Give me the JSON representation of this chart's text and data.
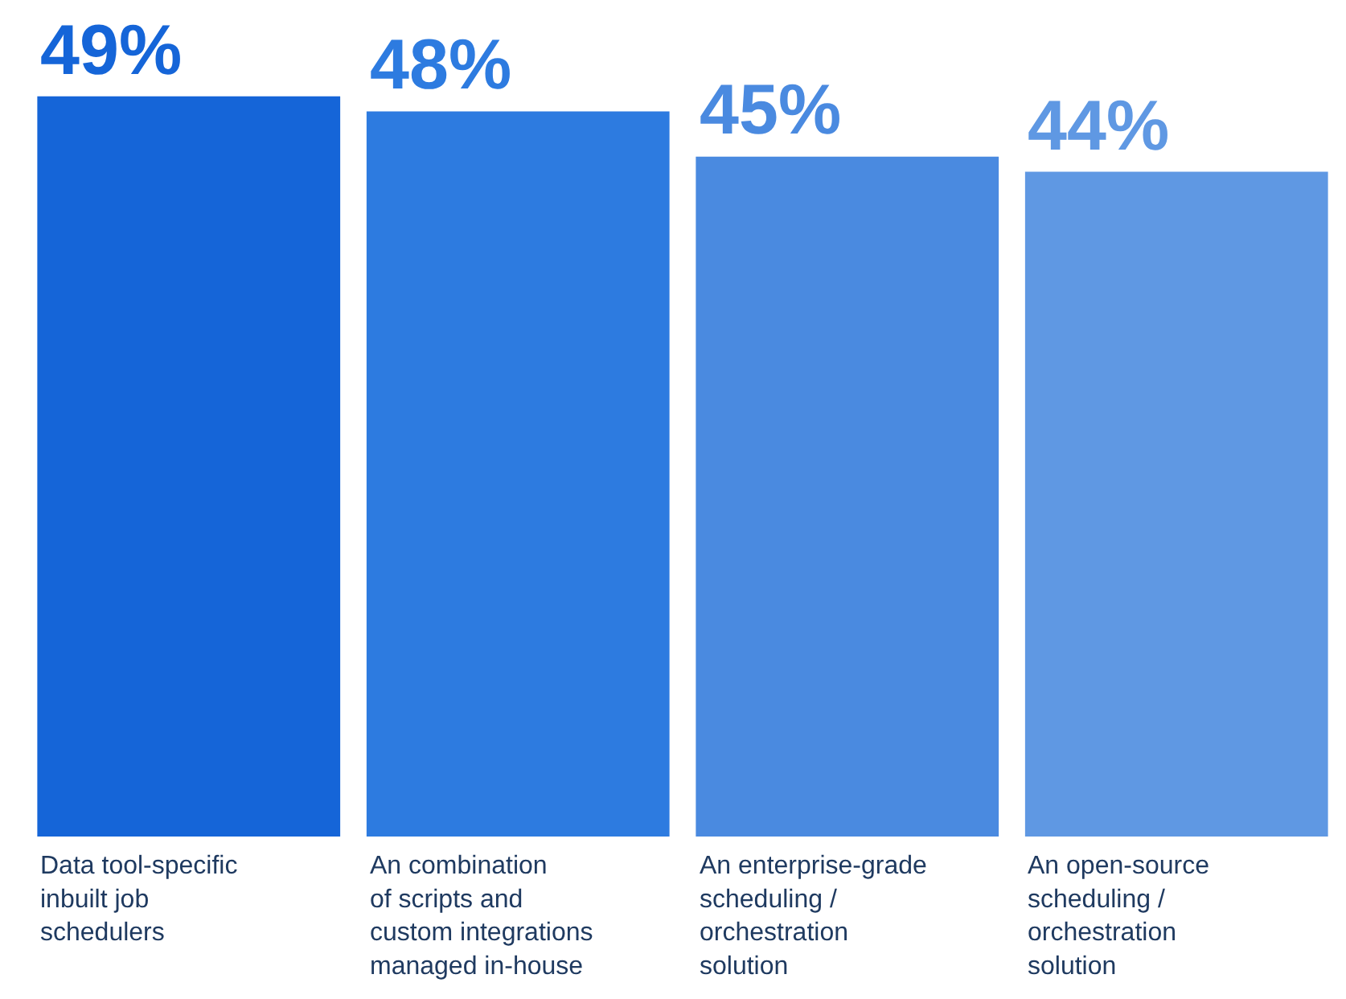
{
  "chart_data": {
    "type": "bar",
    "categories": [
      "Data tool-specific\ninbuilt job\nschedulers",
      "An combination\nof scripts and\ncustom integrations\nmanaged in-house",
      "An enterprise-grade\nscheduling /\norchestration\nsolution",
      "An open-source\nscheduling /\norchestration\nsolution"
    ],
    "values": [
      49,
      48,
      45,
      44
    ],
    "colors": [
      "#1565d8",
      "#2d7be0",
      "#4a8ae0",
      "#5f98e3"
    ],
    "value_labels": [
      "49%",
      "48%",
      "45%",
      "44%"
    ],
    "legend": false
  }
}
